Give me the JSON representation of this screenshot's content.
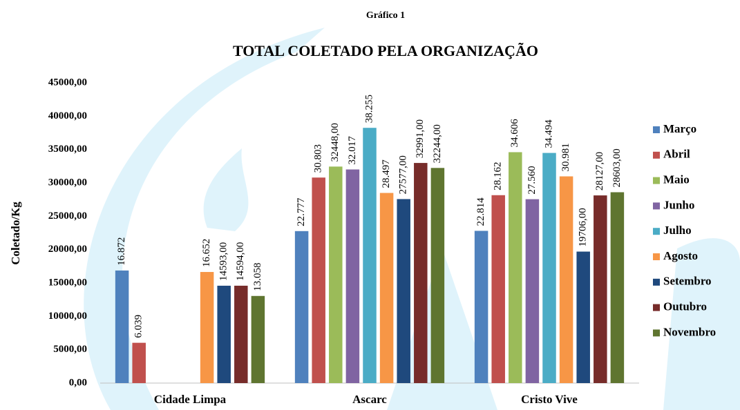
{
  "chart_data": {
    "type": "bar",
    "subtitle": "Gráfico 1",
    "title": "TOTAL COLETADO PELA ORGANIZAÇÃO",
    "y_label": "Coletado/Kg",
    "categories": [
      "Cidade Limpa",
      "Ascarc",
      "Cristo Vive"
    ],
    "series": [
      {
        "name": "Março",
        "color": "#4f81bd",
        "values": [
          16872,
          22777,
          22814
        ],
        "value_labels": [
          "16.872",
          "22.777",
          "22.814"
        ]
      },
      {
        "name": "Abril",
        "color": "#c0504d",
        "values": [
          6039,
          30803,
          28162
        ],
        "value_labels": [
          "6.039",
          "30.803",
          "28.162"
        ]
      },
      {
        "name": "Maio",
        "color": "#9bbb59",
        "values": [
          null,
          32448,
          34606
        ],
        "value_labels": [
          null,
          "32448,00",
          "34.606"
        ]
      },
      {
        "name": "Junho",
        "color": "#8064a2",
        "values": [
          null,
          32017,
          27560
        ],
        "value_labels": [
          null,
          "32.017",
          "27.560"
        ]
      },
      {
        "name": "Julho",
        "color": "#4bacc6",
        "values": [
          null,
          38255,
          34494
        ],
        "value_labels": [
          null,
          "38.255",
          "34.494"
        ]
      },
      {
        "name": "Agosto",
        "color": "#f79646",
        "values": [
          16652,
          28497,
          30981
        ],
        "value_labels": [
          "16.652",
          "28.497",
          "30.981"
        ]
      },
      {
        "name": "Setembro",
        "color": "#1f497d",
        "values": [
          14593,
          27577,
          19706
        ],
        "value_labels": [
          "14593,00",
          "27577,00",
          "19706,00"
        ]
      },
      {
        "name": "Outubro",
        "color": "#772c2a",
        "values": [
          14594,
          32991,
          28127
        ],
        "value_labels": [
          "14594,00",
          "32991,00",
          "28127,00"
        ]
      },
      {
        "name": "Novembro",
        "color": "#5f7530",
        "values": [
          13058,
          32244,
          28603
        ],
        "value_labels": [
          "13.058",
          "32244,00",
          "28603,00"
        ]
      }
    ],
    "ylim": [
      0,
      45000
    ],
    "yticks": [
      {
        "value": 0,
        "label": "0,00"
      },
      {
        "value": 5000,
        "label": "5000,00"
      },
      {
        "value": 10000,
        "label": "10000,00"
      },
      {
        "value": 15000,
        "label": "15000,00"
      },
      {
        "value": 20000,
        "label": "20000,00"
      },
      {
        "value": 25000,
        "label": "25000,00"
      },
      {
        "value": 30000,
        "label": "30000,00"
      },
      {
        "value": 35000,
        "label": "35000,00"
      },
      {
        "value": 40000,
        "label": "40000,00"
      },
      {
        "value": 45000,
        "label": "45000,00"
      }
    ],
    "legend": "right",
    "grid": false
  }
}
